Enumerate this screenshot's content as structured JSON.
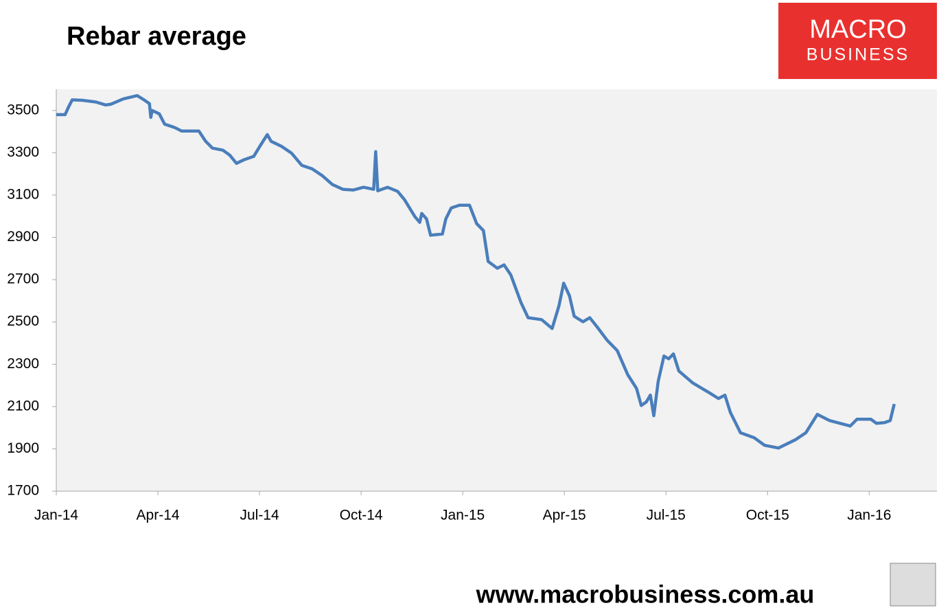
{
  "chart_data": {
    "type": "line",
    "title": "Rebar average",
    "color": "#4a7ebb",
    "x": [
      0,
      0.26,
      0.36,
      0.47,
      0.77,
      1.17,
      1.46,
      1.62,
      1.98,
      2.39,
      2.59,
      2.75,
      2.79,
      2.83,
      3.04,
      3.2,
      3.5,
      3.7,
      4.21,
      4.41,
      4.61,
      4.92,
      5.12,
      5.32,
      5.53,
      5.83,
      6.03,
      6.23,
      6.34,
      6.64,
      6.94,
      7.25,
      7.55,
      7.85,
      8.15,
      8.46,
      8.77,
      9.07,
      9.37,
      9.43,
      9.49,
      9.78,
      10.08,
      10.28,
      10.59,
      10.73,
      10.79,
      10.93,
      11.05,
      11.4,
      11.5,
      11.66,
      11.9,
      12.2,
      12.41,
      12.61,
      12.75,
      13.02,
      13.22,
      13.42,
      13.72,
      13.93,
      14.33,
      14.64,
      14.84,
      14.98,
      15.15,
      15.29,
      15.55,
      15.75,
      15.96,
      16.26,
      16.56,
      16.87,
      17.13,
      17.27,
      17.42,
      17.54,
      17.64,
      17.77,
      17.94,
      18.08,
      18.22,
      18.38,
      18.79,
      19.29,
      19.55,
      19.74,
      19.9,
      20.2,
      20.6,
      20.91,
      21.32,
      21.82,
      22.13,
      22.47,
      22.83,
      23.44,
      23.64,
      24.05,
      24.21,
      24.45,
      24.62,
      24.74
    ],
    "values": [
      3480,
      3480,
      3516,
      3550,
      3548,
      3540,
      3526,
      3530,
      3555,
      3570,
      3550,
      3532,
      3467,
      3500,
      3484,
      3435,
      3419,
      3403,
      3403,
      3354,
      3322,
      3312,
      3289,
      3250,
      3266,
      3283,
      3336,
      3386,
      3354,
      3331,
      3299,
      3240,
      3224,
      3192,
      3150,
      3127,
      3124,
      3137,
      3127,
      3305,
      3120,
      3137,
      3117,
      3078,
      2997,
      2971,
      3013,
      2987,
      2910,
      2916,
      2987,
      3039,
      3052,
      3052,
      2965,
      2932,
      2786,
      2754,
      2770,
      2722,
      2592,
      2520,
      2511,
      2469,
      2576,
      2683,
      2624,
      2527,
      2501,
      2520,
      2478,
      2414,
      2365,
      2251,
      2186,
      2105,
      2122,
      2154,
      2057,
      2219,
      2339,
      2326,
      2349,
      2268,
      2212,
      2164,
      2138,
      2154,
      2073,
      1976,
      1953,
      1917,
      1904,
      1943,
      1976,
      2063,
      2034,
      2008,
      2040,
      2040,
      2021,
      2024,
      2034,
      2112
    ],
    "xlim": [
      0,
      26
    ],
    "xticks": [
      {
        "value": 0,
        "label": "Jan-14"
      },
      {
        "value": 3,
        "label": "Apr-14"
      },
      {
        "value": 6,
        "label": "Jul-14"
      },
      {
        "value": 9,
        "label": "Oct-14"
      },
      {
        "value": 12,
        "label": "Jan-15"
      },
      {
        "value": 15,
        "label": "Apr-15"
      },
      {
        "value": 18,
        "label": "Jul-15"
      },
      {
        "value": 21,
        "label": "Oct-15"
      },
      {
        "value": 24,
        "label": "Jan-16"
      }
    ],
    "ylim": [
      1700,
      3600
    ],
    "yticks": [
      1700,
      1900,
      2100,
      2300,
      2500,
      2700,
      2900,
      3100,
      3300,
      3500
    ]
  },
  "logo": {
    "line1": "MACRO",
    "line2": "BUSINESS"
  },
  "footer_url": "www.macrobusiness.com.au"
}
